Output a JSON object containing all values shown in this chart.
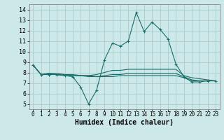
{
  "xlabel": "Humidex (Indice chaleur)",
  "bg_color": "#cce8e8",
  "grid_color": "#aacccc",
  "line_color": "#1a6e6a",
  "xlim": [
    -0.5,
    23.5
  ],
  "ylim": [
    4.5,
    14.5
  ],
  "xticks": [
    0,
    1,
    2,
    3,
    4,
    5,
    6,
    7,
    8,
    9,
    10,
    11,
    12,
    13,
    14,
    15,
    16,
    17,
    18,
    19,
    20,
    21,
    22,
    23
  ],
  "yticks": [
    5,
    6,
    7,
    8,
    9,
    10,
    11,
    12,
    13,
    14
  ],
  "series": [
    [
      8.7,
      7.8,
      7.8,
      7.8,
      7.7,
      7.6,
      6.6,
      5.0,
      6.3,
      9.2,
      10.8,
      10.5,
      11.0,
      13.7,
      11.9,
      12.8,
      12.1,
      11.2,
      8.8,
      7.6,
      7.1,
      7.1,
      7.2,
      7.2
    ],
    [
      8.7,
      7.8,
      7.9,
      7.8,
      7.7,
      7.7,
      7.7,
      7.7,
      7.8,
      8.0,
      8.2,
      8.2,
      8.3,
      8.3,
      8.3,
      8.3,
      8.3,
      8.3,
      8.3,
      7.7,
      7.5,
      7.4,
      7.3,
      7.2
    ],
    [
      8.7,
      7.8,
      7.9,
      7.8,
      7.8,
      7.7,
      7.7,
      7.6,
      7.6,
      7.7,
      7.8,
      7.8,
      7.9,
      7.9,
      7.9,
      7.9,
      7.9,
      7.9,
      7.9,
      7.6,
      7.3,
      7.2,
      7.2,
      7.2
    ],
    [
      8.7,
      7.8,
      7.9,
      7.9,
      7.8,
      7.8,
      7.7,
      7.7,
      7.6,
      7.6,
      7.6,
      7.7,
      7.7,
      7.7,
      7.7,
      7.7,
      7.7,
      7.7,
      7.7,
      7.5,
      7.2,
      7.2,
      7.2,
      7.2
    ]
  ],
  "xlabel_fontsize": 7,
  "tick_fontsize": 5.5,
  "ytick_fontsize": 6
}
